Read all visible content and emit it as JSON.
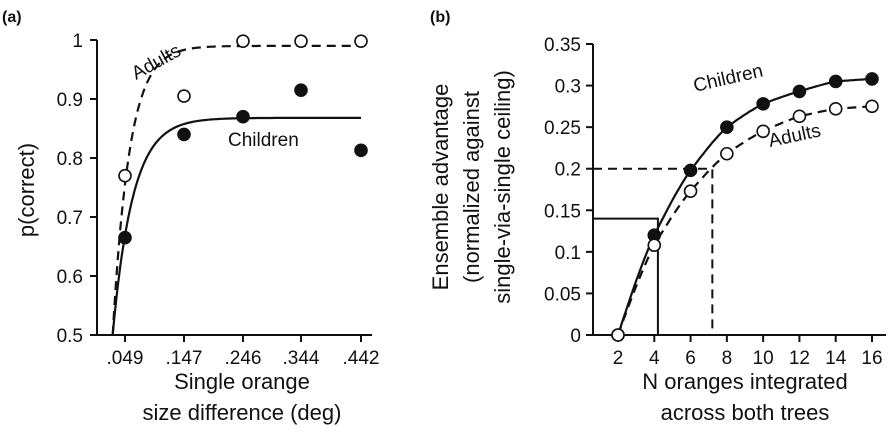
{
  "chart_data": [
    {
      "panel": "(a)",
      "type": "scatter",
      "ylabel": "p(correct)",
      "xlabel_lines": [
        "Single orange",
        "size difference (deg)"
      ],
      "x_ticks": [
        ".049",
        ".147",
        ".246",
        ".344",
        ".442"
      ],
      "x": [
        0.049,
        0.147,
        0.246,
        0.344,
        0.442
      ],
      "y_ticks": [
        "0.5",
        "0.6",
        "0.7",
        "0.8",
        "0.9",
        "1"
      ],
      "ylim": [
        0.5,
        1.0
      ],
      "series": [
        {
          "name": "Adults",
          "marker": "open-circle",
          "fit": "dashed",
          "values": [
            0.77,
            0.905,
            0.998,
            0.998,
            0.998
          ],
          "asymptote": 0.99,
          "fit_rate": 36
        },
        {
          "name": "Children",
          "marker": "filled-circle",
          "fit": "solid",
          "values": [
            0.665,
            0.84,
            0.87,
            0.915,
            0.813
          ],
          "asymptote": 0.868,
          "fit_rate": 30
        }
      ]
    },
    {
      "panel": "(b)",
      "type": "scatter",
      "ylabel_lines": [
        "Ensemble advantage",
        "(normalized against",
        "single-via-single ceiling)"
      ],
      "xlabel_lines": [
        "N oranges integrated",
        "across both trees"
      ],
      "x_ticks": [
        "2",
        "4",
        "6",
        "8",
        "10",
        "12",
        "14",
        "16"
      ],
      "x": [
        2,
        4,
        6,
        8,
        10,
        12,
        14,
        16
      ],
      "y_ticks": [
        "0",
        "0.05",
        "0.1",
        "0.15",
        "0.2",
        "0.25",
        "0.3",
        "0.35"
      ],
      "ylim": [
        0,
        0.35
      ],
      "series": [
        {
          "name": "Children",
          "marker": "filled-circle",
          "fit": "solid",
          "values": [
            0.0,
            0.12,
            0.198,
            0.25,
            0.278,
            0.293,
            0.305,
            0.308
          ]
        },
        {
          "name": "Adults",
          "marker": "open-circle",
          "fit": "dashed",
          "values": [
            0.0,
            0.108,
            0.173,
            0.218,
            0.245,
            0.263,
            0.272,
            0.275
          ]
        }
      ],
      "reference_lines": [
        {
          "style": "solid",
          "y": 0.14,
          "x": 4.2
        },
        {
          "style": "dashed",
          "y": 0.2,
          "x": 7.2
        }
      ]
    }
  ]
}
